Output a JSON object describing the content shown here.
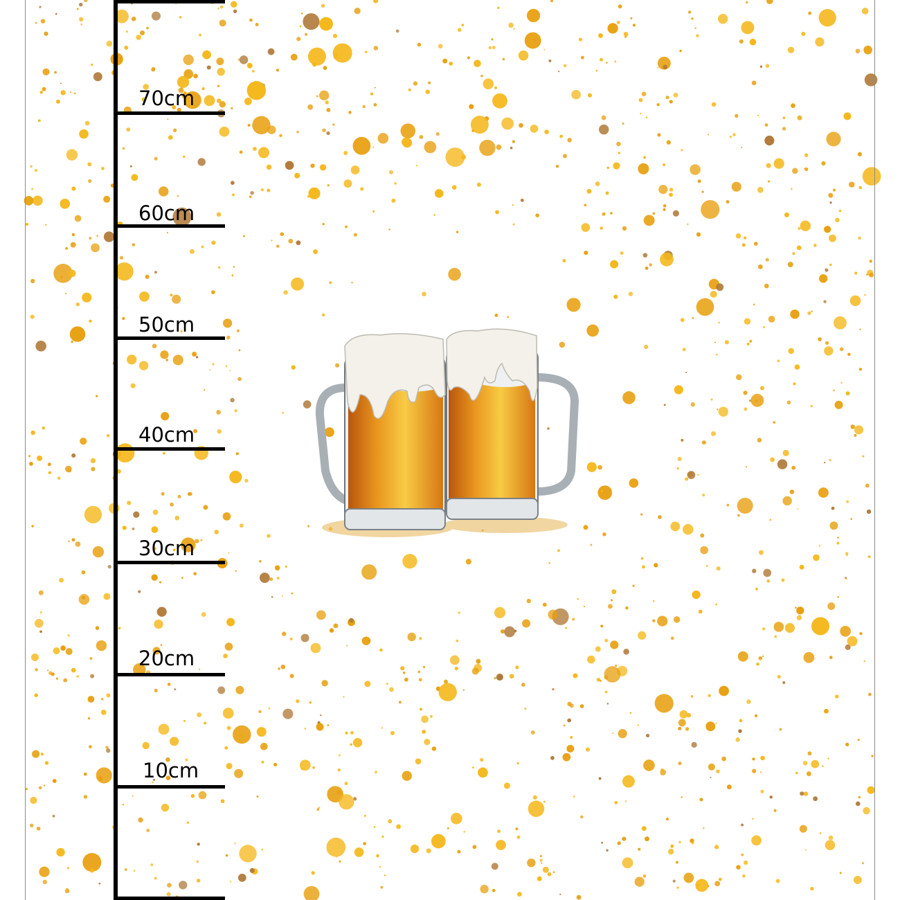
{
  "ruler": {
    "unit": "cm",
    "labels": [
      "70cm",
      "60cm",
      "50cm",
      "40cm",
      "30cm",
      "20cm",
      "10cm"
    ],
    "values": [
      70,
      60,
      50,
      40,
      30,
      20,
      10
    ]
  },
  "artwork": {
    "subject": "two-beer-mugs",
    "colors": {
      "splatter": "#F5B81C",
      "splatter_dark": "#E8A010",
      "beer_light": "#F7C53A",
      "beer_dark": "#C8630E",
      "foam": "#F4F1EA",
      "glass": "#9AA3AA",
      "ruler": "#000000"
    }
  }
}
